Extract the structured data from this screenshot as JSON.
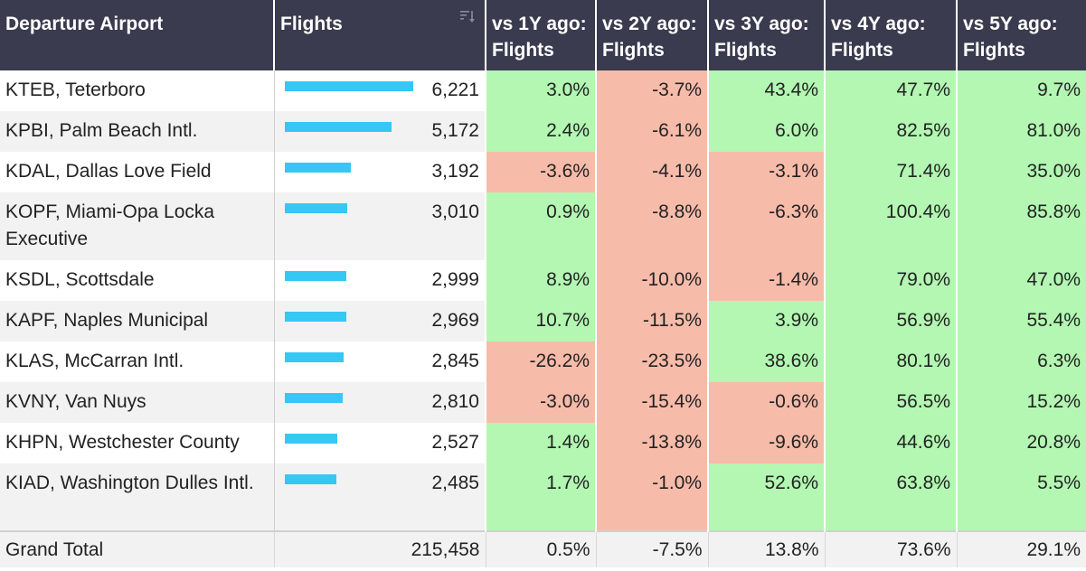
{
  "table": {
    "columns": [
      "Departure Airport",
      "Flights",
      "vs 1Y ago: Flights",
      "vs 2Y ago: Flights",
      "vs 3Y ago: Flights",
      "vs 4Y ago: Flights",
      "vs 5Y ago: Flights"
    ],
    "sort_icon": "sort-descending-icon",
    "colors": {
      "header_bg": "#3b3b4f",
      "positive_bg": "#b3f7b2",
      "negative_bg": "#f7bbaa",
      "bar": "#35c8f4"
    },
    "flights_bar_max": 6221,
    "rows": [
      {
        "airport": "KTEB, Teterboro",
        "flights_value": 6221,
        "flights": "6,221",
        "vs": [
          "3.0%",
          "-3.7%",
          "43.4%",
          "47.7%",
          "9.7%"
        ]
      },
      {
        "airport": "KPBI, Palm Beach Intl.",
        "flights_value": 5172,
        "flights": "5,172",
        "vs": [
          "2.4%",
          "-6.1%",
          "6.0%",
          "82.5%",
          "81.0%"
        ]
      },
      {
        "airport": "KDAL, Dallas Love Field",
        "flights_value": 3192,
        "flights": "3,192",
        "vs": [
          "-3.6%",
          "-4.1%",
          "-3.1%",
          "71.4%",
          "35.0%"
        ]
      },
      {
        "airport": "KOPF, Miami-Opa Locka Executive",
        "flights_value": 3010,
        "flights": "3,010",
        "vs": [
          "0.9%",
          "-8.8%",
          "-6.3%",
          "100.4%",
          "85.8%"
        ]
      },
      {
        "airport": "KSDL, Scottsdale",
        "flights_value": 2999,
        "flights": "2,999",
        "vs": [
          "8.9%",
          "-10.0%",
          "-1.4%",
          "79.0%",
          "47.0%"
        ]
      },
      {
        "airport": "KAPF, Naples Municipal",
        "flights_value": 2969,
        "flights": "2,969",
        "vs": [
          "10.7%",
          "-11.5%",
          "3.9%",
          "56.9%",
          "55.4%"
        ]
      },
      {
        "airport": "KLAS, McCarran Intl.",
        "flights_value": 2845,
        "flights": "2,845",
        "vs": [
          "-26.2%",
          "-23.5%",
          "38.6%",
          "80.1%",
          "6.3%"
        ]
      },
      {
        "airport": "KVNY, Van Nuys",
        "flights_value": 2810,
        "flights": "2,810",
        "vs": [
          "-3.0%",
          "-15.4%",
          "-0.6%",
          "56.5%",
          "15.2%"
        ]
      },
      {
        "airport": "KHPN, Westchester County",
        "flights_value": 2527,
        "flights": "2,527",
        "vs": [
          "1.4%",
          "-13.8%",
          "-9.6%",
          "44.6%",
          "20.8%"
        ]
      },
      {
        "airport": "KIAD, Washington Dulles Intl.",
        "flights_value": 2485,
        "flights": "2,485",
        "vs": [
          "1.7%",
          "-1.0%",
          "52.6%",
          "63.8%",
          "5.5%"
        ]
      }
    ],
    "total": {
      "label": "Grand Total",
      "flights": "215,458",
      "vs": [
        "0.5%",
        "-7.5%",
        "13.8%",
        "73.6%",
        "29.1%"
      ]
    }
  }
}
